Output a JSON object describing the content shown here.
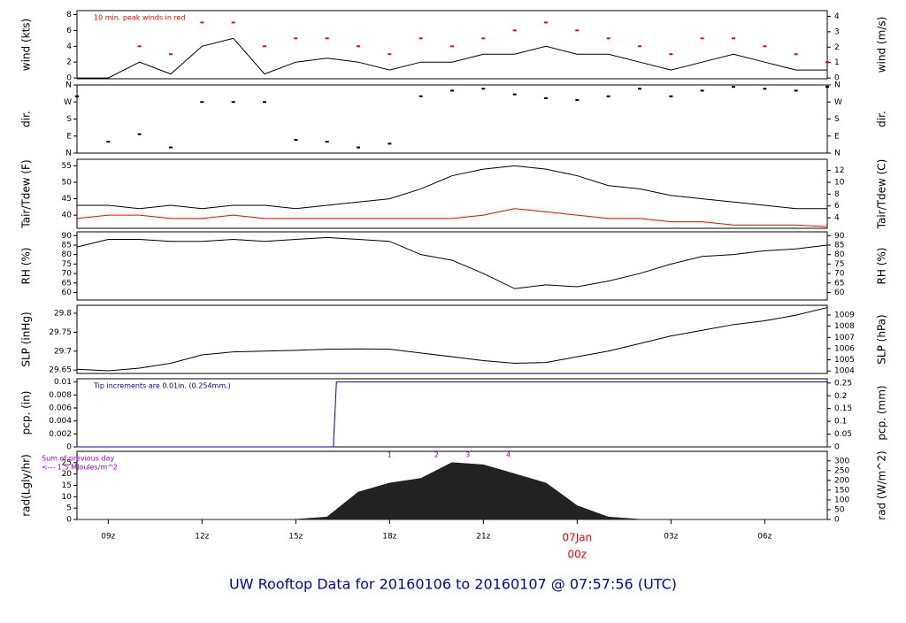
{
  "title": "UW Rooftop Data for 20160106  to  20160107 @ 07:57:56  (UTC)",
  "chart_data": [
    {
      "type": "line",
      "ylabel": "wind (kts)",
      "y2label": "wind (m/s)",
      "annotation": {
        "text": "10 min. peak winds in red",
        "color": "#ff0000"
      },
      "xlim": [
        8,
        32
      ],
      "ylim": [
        -0.1,
        8.5
      ],
      "yticks": [
        0,
        2,
        4,
        6,
        8
      ],
      "y2lim": [
        -0.05,
        4.37
      ],
      "y2ticks": [
        0,
        1,
        2,
        3,
        4
      ],
      "x": [
        8,
        9,
        10,
        11,
        12,
        13,
        14,
        15,
        16,
        17,
        18,
        19,
        20,
        21,
        22,
        23,
        24,
        25,
        26,
        27,
        28,
        29,
        30,
        31,
        32
      ],
      "series": [
        {
          "color": "#000000",
          "values": [
            0,
            0,
            2,
            0.5,
            4,
            5,
            0.5,
            2,
            2.5,
            2,
            1,
            2,
            2,
            3,
            3,
            4,
            3,
            3,
            2,
            1,
            2,
            3,
            2,
            1,
            1
          ]
        },
        {
          "color": "#ff0000",
          "marker": "dash",
          "values": [
            null,
            null,
            4,
            3,
            7,
            7,
            4,
            5,
            5,
            4,
            3,
            5,
            4,
            5,
            6,
            7,
            6,
            5,
            4,
            3,
            5,
            5,
            4,
            3,
            2
          ]
        }
      ]
    },
    {
      "type": "scatter",
      "ylabel": "dir.",
      "y2label": "dir.",
      "xlim": [
        8,
        32
      ],
      "ylim": [
        0,
        360
      ],
      "yticks": [
        {
          "value": 0,
          "label": "N"
        },
        {
          "value": 90,
          "label": "E"
        },
        {
          "value": 180,
          "label": "S"
        },
        {
          "value": 270,
          "label": "W"
        },
        {
          "value": 360,
          "label": "N"
        }
      ],
      "y2lim": [
        0,
        360
      ],
      "y2ticks": [
        {
          "value": 0,
          "label": "N"
        },
        {
          "value": 90,
          "label": "E"
        },
        {
          "value": 180,
          "label": "S"
        },
        {
          "value": 270,
          "label": "W"
        },
        {
          "value": 360,
          "label": "N"
        }
      ],
      "x": [
        8,
        9,
        10,
        11,
        12,
        13,
        14,
        15,
        16,
        17,
        18,
        19,
        20,
        21,
        22,
        23,
        24,
        25,
        26,
        27,
        28,
        29,
        30,
        31,
        32
      ],
      "series": [
        {
          "color": "#000000",
          "values": [
            300,
            60,
            100,
            30,
            270,
            270,
            270,
            70,
            60,
            30,
            50,
            300,
            330,
            340,
            310,
            290,
            280,
            300,
            340,
            300,
            330,
            350,
            340,
            330,
            350
          ]
        }
      ]
    },
    {
      "type": "line",
      "ylabel": "Tair/Tdew (F)",
      "y2label": "Tair/Tdew (C)",
      "xlim": [
        8,
        32
      ],
      "ylim": [
        36,
        57
      ],
      "yticks": [
        40,
        45,
        50,
        55
      ],
      "y2lim": [
        2.22,
        13.89
      ],
      "y2ticks": [
        4,
        6,
        8,
        10,
        12
      ],
      "x": [
        8,
        9,
        10,
        11,
        12,
        13,
        14,
        15,
        16,
        17,
        18,
        19,
        20,
        21,
        22,
        23,
        24,
        25,
        26,
        27,
        28,
        29,
        30,
        31,
        32
      ],
      "series": [
        {
          "color": "#000000",
          "values": [
            43,
            43,
            42,
            43,
            42,
            43,
            43,
            42,
            43,
            44,
            45,
            48,
            52,
            54,
            55,
            54,
            52,
            49,
            48,
            46,
            45,
            44,
            43,
            42,
            42
          ]
        },
        {
          "color": "#ff0000",
          "values": [
            39,
            40,
            40,
            39,
            39,
            40,
            39,
            39,
            39,
            39,
            39,
            39,
            39,
            40,
            42,
            41,
            40,
            39,
            39,
            38,
            38,
            37,
            37,
            37,
            36.5
          ]
        }
      ]
    },
    {
      "type": "line",
      "ylabel": "RH (%)",
      "y2label": "RH (%)",
      "xlim": [
        8,
        32
      ],
      "ylim": [
        56,
        92
      ],
      "yticks": [
        60,
        65,
        70,
        75,
        80,
        85,
        90
      ],
      "y2lim": [
        56,
        92
      ],
      "y2ticks": [
        60,
        65,
        70,
        75,
        80,
        85,
        90
      ],
      "x": [
        8,
        9,
        10,
        11,
        12,
        13,
        14,
        15,
        16,
        17,
        18,
        19,
        20,
        21,
        22,
        23,
        24,
        25,
        26,
        27,
        28,
        29,
        30,
        31,
        32
      ],
      "series": [
        {
          "color": "#000000",
          "values": [
            84,
            88,
            88,
            87,
            87,
            88,
            87,
            88,
            89,
            88,
            87,
            80,
            77,
            70,
            62,
            64,
            63,
            66,
            70,
            75,
            79,
            80,
            82,
            83,
            85
          ]
        }
      ]
    },
    {
      "type": "line",
      "ylabel": "SLP (inHg)",
      "y2label": "SLP (hPa)",
      "xlim": [
        8,
        32
      ],
      "ylim": [
        29.641,
        29.821
      ],
      "yticks": [
        29.65,
        29.7,
        29.75,
        29.8
      ],
      "y2lim": [
        1003.78,
        1009.87
      ],
      "y2ticks": [
        1004,
        1005,
        1006,
        1007,
        1008,
        1009
      ],
      "x": [
        8,
        9,
        10,
        11,
        12,
        13,
        14,
        15,
        16,
        17,
        18,
        19,
        20,
        21,
        22,
        23,
        24,
        25,
        26,
        27,
        28,
        29,
        30,
        31,
        32
      ],
      "series": [
        {
          "color": "#000000",
          "values": [
            29.652,
            29.648,
            29.655,
            29.668,
            29.69,
            29.698,
            29.7,
            29.702,
            29.705,
            29.706,
            29.705,
            29.695,
            29.685,
            29.675,
            29.668,
            29.67,
            29.685,
            29.7,
            29.72,
            29.74,
            29.755,
            29.77,
            29.78,
            29.795,
            29.815
          ]
        }
      ]
    },
    {
      "type": "line",
      "ylabel": "pcp. (in)",
      "y2label": "pcp. (mm)",
      "annotation": {
        "text": "Tip increments are 0.01in. (0.254mm.)",
        "color": "#0000cc"
      },
      "xlim": [
        8,
        32
      ],
      "ylim": [
        0,
        0.0105
      ],
      "yticks": [
        0,
        0.002,
        0.004,
        0.006,
        0.008,
        0.01
      ],
      "y2lim": [
        0,
        0.2667
      ],
      "y2ticks": [
        0,
        0.05,
        0.1,
        0.15,
        0.2,
        0.25
      ],
      "x": [
        8,
        16.2,
        16.3,
        32
      ],
      "series": [
        {
          "color": "#0000cc",
          "values": [
            0,
            0,
            0.01,
            0.01
          ]
        }
      ]
    },
    {
      "type": "area",
      "ylabel": "rad(Lgly/hr)",
      "y2label": "rad (W/m^2)",
      "annotation": {
        "text": "Sum of previous day",
        "text2": "<--- 1.5 MJoules/m^2",
        "color": "#9900cc"
      },
      "markers": [
        {
          "x": 18,
          "label": "1"
        },
        {
          "x": 19.5,
          "label": "2"
        },
        {
          "x": 20.5,
          "label": "3"
        },
        {
          "x": 21.8,
          "label": "4"
        }
      ],
      "xlim": [
        8,
        32
      ],
      "ylim": [
        0,
        30
      ],
      "yticks": [
        0,
        5,
        10,
        15,
        20,
        25
      ],
      "y2lim": [
        0,
        348.9
      ],
      "y2ticks": [
        0,
        50,
        100,
        150,
        200,
        250,
        300
      ],
      "xticks": [
        {
          "value": 9,
          "label": "09z"
        },
        {
          "value": 12,
          "label": "12z"
        },
        {
          "value": 15,
          "label": "15z"
        },
        {
          "value": 18,
          "label": "18z"
        },
        {
          "value": 21,
          "label": "21z"
        },
        {
          "value": 24,
          "label": "00z",
          "color": "#ff0000"
        },
        {
          "value": 27,
          "label": "03z"
        },
        {
          "value": 30,
          "label": "06z"
        }
      ],
      "date_label": "07Jan",
      "x": [
        8,
        9,
        10,
        11,
        12,
        13,
        14,
        15,
        16,
        17,
        18,
        19,
        20,
        21,
        22,
        23,
        24,
        25,
        26,
        27,
        28,
        29,
        30,
        31,
        32
      ],
      "series": [
        {
          "color": "#222222",
          "values": [
            0,
            0,
            0,
            0,
            0,
            0,
            0,
            0,
            1,
            12,
            16,
            18,
            25,
            24,
            20,
            16,
            6,
            1,
            0,
            0,
            0,
            0,
            0,
            0,
            0
          ]
        }
      ]
    }
  ]
}
